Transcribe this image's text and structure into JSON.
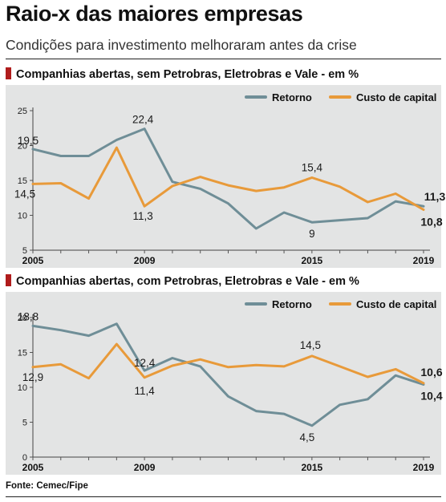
{
  "title": "Raio-x das maiores empresas",
  "subtitle": "Condições para investimento melhoraram antes da crise",
  "source": "Fonte: Cemec/Fipe",
  "colors": {
    "retorno": "#6f8e97",
    "custo": "#e89a3a",
    "accent": "#b01c1c",
    "background": "#e3e4e4"
  },
  "chart_data": [
    {
      "type": "line",
      "heading": "Companhias abertas, sem Petrobras, Eletrobras e Vale - em %",
      "x": [
        2005,
        2006,
        2007,
        2008,
        2009,
        2010,
        2011,
        2012,
        2013,
        2014,
        2015,
        2016,
        2017,
        2018,
        2019
      ],
      "x_ticks": [
        "2005",
        "2009",
        "2015",
        "2019"
      ],
      "ylim": [
        5,
        25
      ],
      "y_ticks": [
        "5",
        "10",
        "15",
        "20",
        "25"
      ],
      "legend_position": "top-right",
      "series": [
        {
          "name": "Retorno",
          "color": "#6f8e97",
          "values": [
            19.5,
            18.5,
            18.5,
            20.8,
            22.4,
            14.8,
            13.8,
            11.7,
            8.1,
            10.4,
            9,
            9.3,
            9.6,
            12,
            11.3
          ]
        },
        {
          "name": "Custo de capital",
          "color": "#e89a3a",
          "values": [
            14.5,
            14.6,
            12.4,
            19.7,
            11.3,
            14.2,
            15.5,
            14.3,
            13.5,
            14,
            15.4,
            14.1,
            11.9,
            13.1,
            10.8
          ]
        }
      ],
      "annotations": [
        {
          "text": "19,5",
          "series": 0,
          "index": 0,
          "bold": false
        },
        {
          "text": "22,4",
          "series": 0,
          "index": 4,
          "bold": false
        },
        {
          "text": "15,4",
          "series": 1,
          "index": 10,
          "bold": false
        },
        {
          "text": "9",
          "series": 0,
          "index": 10,
          "bold": false
        },
        {
          "text": "14,5",
          "series": 1,
          "index": 0,
          "bold": false
        },
        {
          "text": "11,3",
          "series": 1,
          "index": 4,
          "bold": false
        },
        {
          "text": "11,3",
          "series": 0,
          "index": 14,
          "bold": true
        },
        {
          "text": "10,8",
          "series": 1,
          "index": 14,
          "bold": true
        }
      ]
    },
    {
      "type": "line",
      "heading": "Companhias abertas, com Petrobras, Eletrobras e Vale - em %",
      "x": [
        2005,
        2006,
        2007,
        2008,
        2009,
        2010,
        2011,
        2012,
        2013,
        2014,
        2015,
        2016,
        2017,
        2018,
        2019
      ],
      "x_ticks": [
        "2005",
        "2009",
        "2015",
        "2019"
      ],
      "ylim": [
        0,
        20
      ],
      "y_ticks": [
        "0",
        "5",
        "10",
        "15",
        "20"
      ],
      "legend_position": "top-right",
      "series": [
        {
          "name": "Retorno",
          "color": "#6f8e97",
          "values": [
            18.8,
            18.2,
            17.4,
            19.1,
            12.4,
            14.2,
            13,
            8.7,
            6.6,
            6.2,
            4.5,
            7.5,
            8.3,
            11.7,
            10.4
          ]
        },
        {
          "name": "Custo de capital",
          "color": "#e89a3a",
          "values": [
            12.9,
            13.3,
            11.3,
            16.2,
            11.4,
            13.1,
            14,
            12.9,
            13.2,
            13,
            14.5,
            13,
            11.5,
            12.6,
            10.6
          ]
        }
      ],
      "annotations": [
        {
          "text": "18,8",
          "series": 0,
          "index": 0,
          "bold": false
        },
        {
          "text": "12,4",
          "series": 0,
          "index": 4,
          "bold": false
        },
        {
          "text": "14,5",
          "series": 1,
          "index": 10,
          "bold": false
        },
        {
          "text": "12,9",
          "series": 1,
          "index": 0,
          "bold": false
        },
        {
          "text": "11,4",
          "series": 1,
          "index": 4,
          "bold": false
        },
        {
          "text": "4,5",
          "series": 0,
          "index": 10,
          "bold": false
        },
        {
          "text": "10,6",
          "series": 1,
          "index": 14,
          "bold": true
        },
        {
          "text": "10,4",
          "series": 0,
          "index": 14,
          "bold": true
        }
      ]
    }
  ]
}
